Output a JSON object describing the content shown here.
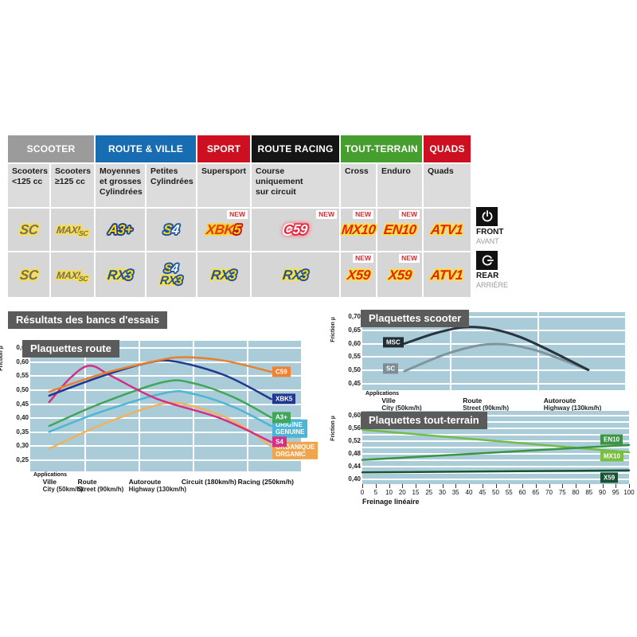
{
  "section_title": "Résultats des bancs d'essais",
  "table": {
    "new_label": "NEW",
    "header_groups": [
      {
        "label": "SCOOTER",
        "color": "#9b9b9b",
        "span": 2
      },
      {
        "label": "ROUTE & VILLE",
        "color": "#176cb2",
        "span": 2
      },
      {
        "label": "SPORT",
        "color": "#cd1021",
        "span": 1
      },
      {
        "label": "ROUTE RACING",
        "color": "#151515",
        "span": 1
      },
      {
        "label": "TOUT-TERRAIN",
        "color": "#459e2e",
        "span": 2
      },
      {
        "label": "QUADS",
        "color": "#cd1021",
        "span": 1
      }
    ],
    "subheaders": [
      [
        "Scooters",
        "<125 cc"
      ],
      [
        "Scooters",
        "≥125 cc"
      ],
      [
        "Moyennes",
        "et grosses",
        "Cylindrées"
      ],
      [
        "Petites",
        "Cylindrées"
      ],
      [
        "Supersport"
      ],
      [
        "Course",
        "uniquement",
        "sur circuit"
      ],
      [
        "Cross"
      ],
      [
        "Enduro"
      ],
      [
        "Quads"
      ]
    ],
    "rows": [
      {
        "position_en": "FRONT",
        "position_fr": "AVANT",
        "cells": [
          {
            "logos": [
              "SC"
            ],
            "new": false
          },
          {
            "logos": [
              "MAXI SC"
            ],
            "new": false
          },
          {
            "logos": [
              "A3+"
            ],
            "new": false
          },
          {
            "logos": [
              "S4"
            ],
            "new": false
          },
          {
            "logos": [
              "XBK5"
            ],
            "new": true
          },
          {
            "logos": [
              "C59"
            ],
            "new": true
          },
          {
            "logos": [
              "MX10"
            ],
            "new": true
          },
          {
            "logos": [
              "EN10"
            ],
            "new": true
          },
          {
            "logos": [
              "ATV1"
            ],
            "new": false
          }
        ]
      },
      {
        "position_en": "REAR",
        "position_fr": "ARRIÈRE",
        "cells": [
          {
            "logos": [
              "SC"
            ],
            "new": false
          },
          {
            "logos": [
              "MAXI SC"
            ],
            "new": false
          },
          {
            "logos": [
              "RX3"
            ],
            "new": false
          },
          {
            "logos": [
              "S4",
              "RX3"
            ],
            "new": false
          },
          {
            "logos": [
              "RX3"
            ],
            "new": false
          },
          {
            "logos": [
              "RX3"
            ],
            "new": false
          },
          {
            "logos": [
              "X59"
            ],
            "new": true
          },
          {
            "logos": [
              "X59"
            ],
            "new": true
          },
          {
            "logos": [
              "ATV1"
            ],
            "new": false
          }
        ]
      }
    ]
  },
  "chart_data": [
    {
      "type": "line",
      "title": "Plaquettes route",
      "ylabel": "Friction µ",
      "x_axis_note": "Applications",
      "ylim": [
        0.25,
        0.65
      ],
      "grid": "on",
      "legend_position": "right",
      "yticks": [
        {
          "v": 0.65,
          "label": "0,65"
        },
        {
          "v": 0.6,
          "label": "0,60"
        },
        {
          "v": 0.55,
          "label": "0,55"
        },
        {
          "v": 0.5,
          "label": "0,50"
        },
        {
          "v": 0.45,
          "label": "0,45"
        },
        {
          "v": 0.4,
          "label": "0,40"
        },
        {
          "v": 0.35,
          "label": "0,35"
        },
        {
          "v": 0.3,
          "label": "0,30"
        },
        {
          "v": 0.25,
          "label": "0,25"
        }
      ],
      "categories": [
        {
          "fr": "Ville",
          "en": "City",
          "speed": "(50km/h)",
          "x": 0.12
        },
        {
          "fr": "Route",
          "en": "Street",
          "speed": "(90km/h)",
          "x": 0.26
        },
        {
          "fr": "Autoroute",
          "en": "Highway",
          "speed": "(130km/h)",
          "x": 0.47
        },
        {
          "fr": "Circuit",
          "en": "",
          "speed": "(180km/h)",
          "x": 0.66
        },
        {
          "fr": "Racing",
          "en": "",
          "speed": "(250km/h)",
          "x": 0.87
        }
      ],
      "series": [
        {
          "name": "ORGANIQUE ORGANIC",
          "label_lines": [
            "ORGANIQUE",
            "ORGANIC"
          ],
          "color": "#edb35f",
          "label_bg": "#f0a54c",
          "label_side": "right",
          "label_v": 0.285,
          "points": [
            [
              0.07,
              0.291
            ],
            [
              0.26,
              0.375
            ],
            [
              0.47,
              0.447
            ],
            [
              0.58,
              0.447
            ],
            [
              0.75,
              0.39
            ],
            [
              0.89,
              0.3
            ]
          ]
        },
        {
          "name": "ORIGINE GENUINE",
          "label_lines": [
            "ORIGINE",
            "GENUINE"
          ],
          "color": "#4cb6d4",
          "label_bg": "#4cb6d4",
          "label_side": "right",
          "label_v": 0.363,
          "points": [
            [
              0.07,
              0.351
            ],
            [
              0.26,
              0.422
            ],
            [
              0.5,
              0.49
            ],
            [
              0.6,
              0.487
            ],
            [
              0.75,
              0.44
            ],
            [
              0.89,
              0.372
            ]
          ]
        },
        {
          "name": "A3+",
          "label_lines": [
            "A3+"
          ],
          "color": "#41a65a",
          "label_bg": "#41a65a",
          "label_side": "right",
          "label_v": 0.402,
          "points": [
            [
              0.07,
              0.372
            ],
            [
              0.26,
              0.452
            ],
            [
              0.49,
              0.528
            ],
            [
              0.6,
              0.525
            ],
            [
              0.75,
              0.475
            ],
            [
              0.89,
              0.402
            ]
          ]
        },
        {
          "name": "S4",
          "label_lines": [
            "S4"
          ],
          "color": "#d62e87",
          "label_bg": "#d62e87",
          "label_side": "right",
          "label_v": 0.315,
          "points": [
            [
              0.07,
              0.457
            ],
            [
              0.15,
              0.545
            ],
            [
              0.22,
              0.587
            ],
            [
              0.3,
              0.55
            ],
            [
              0.47,
              0.468
            ],
            [
              0.7,
              0.4
            ],
            [
              0.89,
              0.315
            ]
          ]
        },
        {
          "name": "XBK5",
          "label_lines": [
            "XBK5"
          ],
          "color": "#20388f",
          "label_bg": "#20388f",
          "label_side": "right",
          "label_v": 0.468,
          "points": [
            [
              0.07,
              0.48
            ],
            [
              0.26,
              0.548
            ],
            [
              0.44,
              0.598
            ],
            [
              0.54,
              0.601
            ],
            [
              0.72,
              0.552
            ],
            [
              0.89,
              0.468
            ]
          ]
        },
        {
          "name": "C59",
          "label_lines": [
            "C59"
          ],
          "color": "#e8802e",
          "label_bg": "#ef8232",
          "label_side": "right",
          "label_v": 0.565,
          "points": [
            [
              0.07,
              0.494
            ],
            [
              0.26,
              0.556
            ],
            [
              0.47,
              0.605
            ],
            [
              0.57,
              0.617
            ],
            [
              0.72,
              0.604
            ],
            [
              0.89,
              0.565
            ]
          ]
        }
      ]
    },
    {
      "type": "line",
      "title": "Plaquettes scooter",
      "ylabel": "Friction µ",
      "x_axis_note": "Applications",
      "ylim": [
        0.45,
        0.7
      ],
      "grid": "on",
      "legend_position": "left",
      "yticks": [
        {
          "v": 0.7,
          "label": "0,70"
        },
        {
          "v": 0.65,
          "label": "0,65"
        },
        {
          "v": 0.6,
          "label": "0,60"
        },
        {
          "v": 0.55,
          "label": "0,55"
        },
        {
          "v": 0.5,
          "label": "0,50"
        },
        {
          "v": 0.45,
          "label": "0,45"
        }
      ],
      "categories": [
        {
          "fr": "Ville",
          "en": "City",
          "speed": "(50km/h)",
          "x": 0.15
        },
        {
          "fr": "Route",
          "en": "Street",
          "speed": "(90km/h)",
          "x": 0.47
        },
        {
          "fr": "Autoroute",
          "en": "Highway",
          "speed": "(130km/h)",
          "x": 0.8
        }
      ],
      "series": [
        {
          "name": "SC",
          "label_lines": [
            "SC"
          ],
          "color": "#7f969d",
          "label_bg": "#7f8d93",
          "label_side": "left",
          "label_v": 0.508,
          "points": [
            [
              0.16,
              0.497
            ],
            [
              0.33,
              0.565
            ],
            [
              0.49,
              0.598
            ],
            [
              0.65,
              0.578
            ],
            [
              0.86,
              0.502
            ]
          ]
        },
        {
          "name": "MSC",
          "label_lines": [
            "MSC"
          ],
          "color": "#26353f",
          "label_bg": "#222e36",
          "label_side": "left",
          "label_v": 0.605,
          "points": [
            [
              0.16,
              0.6
            ],
            [
              0.3,
              0.645
            ],
            [
              0.43,
              0.662
            ],
            [
              0.6,
              0.625
            ],
            [
              0.86,
              0.502
            ]
          ]
        }
      ]
    },
    {
      "type": "line",
      "title": "Plaquettes tout-terrain",
      "ylabel": "Friction µ",
      "xlabel": "Freinage linéaire",
      "ylim": [
        0.4,
        0.6
      ],
      "xlim": [
        0,
        100
      ],
      "grid": "on",
      "legend_position": "right",
      "yticks": [
        {
          "v": 0.6,
          "label": "0,60"
        },
        {
          "v": 0.56,
          "label": "0,56"
        },
        {
          "v": 0.52,
          "label": "0,52"
        },
        {
          "v": 0.48,
          "label": "0,48"
        },
        {
          "v": 0.44,
          "label": "0,44"
        },
        {
          "v": 0.4,
          "label": "0,40"
        }
      ],
      "xticks": [
        "0",
        "5",
        "10",
        "20",
        "15",
        "25",
        "30",
        "35",
        "40",
        "45",
        "50",
        "55",
        "60",
        "65",
        "70",
        "75",
        "80",
        "85",
        "90",
        "95",
        "100"
      ],
      "series": [
        {
          "name": "MX10",
          "label_lines": [
            "MX10"
          ],
          "color": "#72bd44",
          "label_bg": "#7abf41",
          "label_side": "right",
          "label_v": 0.472,
          "points": [
            [
              0.0,
              0.556
            ],
            [
              1.0,
              0.485
            ]
          ]
        },
        {
          "name": "EN10",
          "label_lines": [
            "EN10"
          ],
          "color": "#3a9442",
          "label_bg": "#3a9442",
          "label_side": "right",
          "label_v": 0.525,
          "points": [
            [
              0.0,
              0.461
            ],
            [
              1.0,
              0.508
            ]
          ]
        },
        {
          "name": "X59",
          "label_lines": [
            "X59"
          ],
          "color": "#175233",
          "label_bg": "#175233",
          "label_side": "right",
          "label_v": 0.405,
          "points": [
            [
              0.0,
              0.422
            ],
            [
              1.0,
              0.428
            ]
          ]
        }
      ]
    }
  ]
}
